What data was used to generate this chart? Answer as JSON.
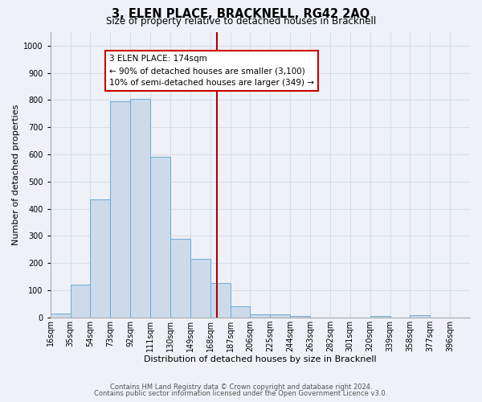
{
  "title": "3, ELEN PLACE, BRACKNELL, RG42 2AQ",
  "subtitle": "Size of property relative to detached houses in Bracknell",
  "xlabel": "Distribution of detached houses by size in Bracknell",
  "ylabel": "Number of detached properties",
  "bar_left_edges": [
    16,
    35,
    54,
    73,
    92,
    111,
    130,
    149,
    168,
    187,
    206,
    225,
    244,
    263,
    282,
    301,
    320,
    339,
    358,
    377
  ],
  "bar_heights": [
    15,
    120,
    435,
    795,
    805,
    590,
    290,
    215,
    125,
    40,
    12,
    10,
    6,
    0,
    0,
    0,
    5,
    0,
    8,
    0
  ],
  "bin_width": 19,
  "bar_color": "#ccdaea",
  "bar_edge_color": "#6aaad4",
  "vline_x": 174,
  "vline_color": "#aa0000",
  "annotation_title": "3 ELEN PLACE: 174sqm",
  "annotation_line1": "← 90% of detached houses are smaller (3,100)",
  "annotation_line2": "10% of semi-detached houses are larger (349) →",
  "annotation_box_color": "#cc0000",
  "annotation_fill": "#ffffff",
  "tick_labels": [
    "16sqm",
    "35sqm",
    "54sqm",
    "73sqm",
    "92sqm",
    "111sqm",
    "130sqm",
    "149sqm",
    "168sqm",
    "187sqm",
    "206sqm",
    "225sqm",
    "244sqm",
    "263sqm",
    "282sqm",
    "301sqm",
    "320sqm",
    "339sqm",
    "358sqm",
    "377sqm",
    "396sqm"
  ],
  "ylim": [
    0,
    1050
  ],
  "yticks": [
    0,
    100,
    200,
    300,
    400,
    500,
    600,
    700,
    800,
    900,
    1000
  ],
  "footnote1": "Contains HM Land Registry data © Crown copyright and database right 2024.",
  "footnote2": "Contains public sector information licensed under the Open Government Licence v3.0.",
  "bg_color": "#eef2f8",
  "grid_color": "#d8dde8",
  "title_fontsize": 10.5,
  "subtitle_fontsize": 8.5,
  "axis_label_fontsize": 8,
  "tick_fontsize": 7,
  "footnote_fontsize": 6,
  "annotation_fontsize": 7.5
}
